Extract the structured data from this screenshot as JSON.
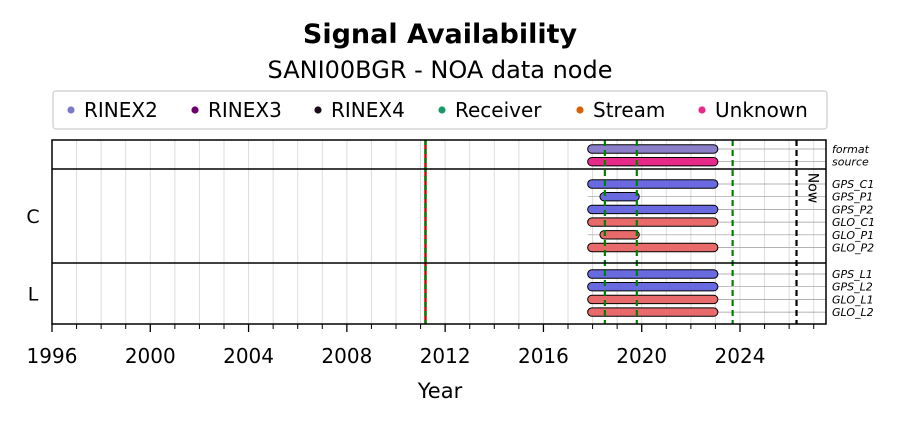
{
  "chart_data": {
    "type": "timeline",
    "title": "Signal Availability",
    "subtitle": "SANI00BGR - NOA data node",
    "xlabel": "Year",
    "xlim": [
      1996,
      2027.5
    ],
    "xticks": [
      1996,
      2000,
      2004,
      2008,
      2012,
      2016,
      2020,
      2024
    ],
    "now_label": "Now",
    "now_year": 2026.3,
    "legend": [
      {
        "label": "RINEX2",
        "color": "#7b7bc8"
      },
      {
        "label": "RINEX3",
        "color": "#6a006a"
      },
      {
        "label": "RINEX4",
        "color": "#1a0a1a"
      },
      {
        "label": "Receiver",
        "color": "#1a9a6a"
      },
      {
        "label": "Stream",
        "color": "#d95f02"
      },
      {
        "label": "Unknown",
        "color": "#e7298a"
      }
    ],
    "event_lines": [
      {
        "year": 2011.2,
        "colors": [
          "#cc0000",
          "#008000"
        ]
      },
      {
        "year": 2018.5,
        "colors": [
          "#008000"
        ]
      },
      {
        "year": 2019.8,
        "colors": [
          "#008000"
        ]
      },
      {
        "year": 2023.7,
        "colors": [
          "#008000"
        ]
      }
    ],
    "groups": [
      {
        "label": "",
        "rows": [
          "format",
          "source"
        ]
      },
      {
        "label": "C",
        "rows": [
          "GPS_C1",
          "GPS_P1",
          "GPS_P2",
          "GLO_C1",
          "GLO_P1",
          "GLO_P2"
        ]
      },
      {
        "label": "L",
        "rows": [
          "GPS_L1",
          "GPS_L2",
          "GLO_L1",
          "GLO_L2"
        ]
      }
    ],
    "bars": [
      {
        "row": "format",
        "start": 2017.8,
        "end": 2023.1,
        "color": "#8a7fc8"
      },
      {
        "row": "source",
        "start": 2017.8,
        "end": 2023.1,
        "color": "#e7298a"
      },
      {
        "row": "GPS_C1",
        "start": 2017.8,
        "end": 2023.1,
        "color": "#6a6ae0"
      },
      {
        "row": "GPS_P1",
        "start": 2018.3,
        "end": 2019.9,
        "color": "#6a6ae0"
      },
      {
        "row": "GPS_P2",
        "start": 2017.8,
        "end": 2023.1,
        "color": "#6a6ae0"
      },
      {
        "row": "GLO_C1",
        "start": 2017.8,
        "end": 2023.1,
        "color": "#e86a6a"
      },
      {
        "row": "GLO_P1",
        "start": 2018.3,
        "end": 2019.9,
        "color": "#e86a6a"
      },
      {
        "row": "GLO_P2",
        "start": 2017.8,
        "end": 2023.1,
        "color": "#e86a6a"
      },
      {
        "row": "GPS_L1",
        "start": 2017.8,
        "end": 2023.1,
        "color": "#6a6ae0"
      },
      {
        "row": "GPS_L2",
        "start": 2017.8,
        "end": 2023.1,
        "color": "#6a6ae0"
      },
      {
        "row": "GLO_L1",
        "start": 2017.8,
        "end": 2023.1,
        "color": "#e86a6a"
      },
      {
        "row": "GLO_L2",
        "start": 2017.8,
        "end": 2023.1,
        "color": "#e86a6a"
      }
    ]
  }
}
